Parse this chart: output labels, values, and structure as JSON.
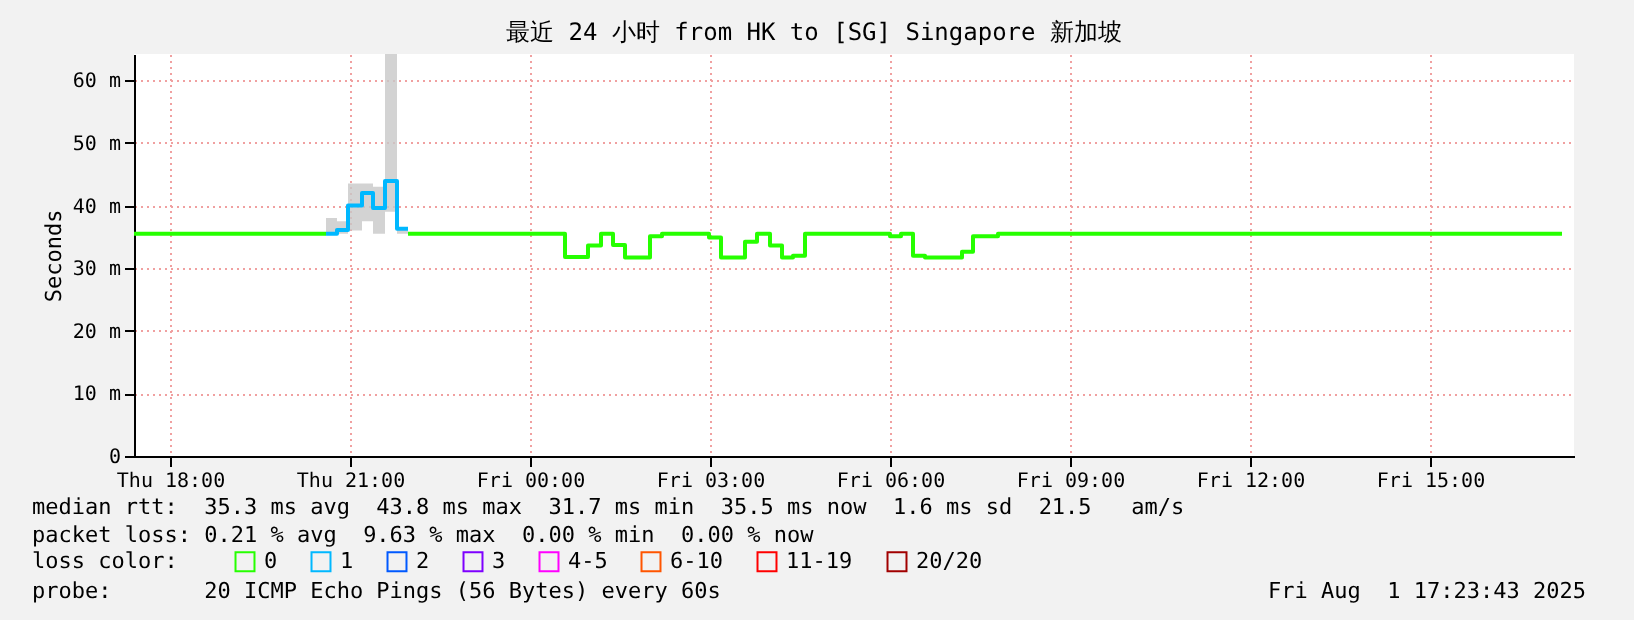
{
  "chart_data": {
    "type": "step",
    "title": "最近 24 小时 from HK to [SG] Singapore 新加坡",
    "ylabel": "Seconds",
    "xlim": [
      "2025-07-31T17:24",
      "2025-08-01T17:24"
    ],
    "xticks": [
      {
        "value": "2025-07-31T18:00",
        "label": "Thu 18:00"
      },
      {
        "value": "2025-07-31T21:00",
        "label": "Thu 21:00"
      },
      {
        "value": "2025-08-01T00:00",
        "label": "Fri 00:00"
      },
      {
        "value": "2025-08-01T03:00",
        "label": "Fri 03:00"
      },
      {
        "value": "2025-08-01T06:00",
        "label": "Fri 06:00"
      },
      {
        "value": "2025-08-01T09:00",
        "label": "Fri 09:00"
      },
      {
        "value": "2025-08-01T12:00",
        "label": "Fri 12:00"
      },
      {
        "value": "2025-08-01T15:00",
        "label": "Fri 15:00"
      }
    ],
    "ylim": [
      0,
      64.2
    ],
    "yticks": [
      {
        "value": 0,
        "label": "0"
      },
      {
        "value": 10,
        "label": "10 m"
      },
      {
        "value": 20,
        "label": "20 m"
      },
      {
        "value": 30,
        "label": "30 m"
      },
      {
        "value": 40,
        "label": "40 m"
      },
      {
        "value": 50,
        "label": "50 m"
      },
      {
        "value": 60,
        "label": "60 m"
      }
    ],
    "grid": true,
    "legend": "bottom",
    "legend_title": "loss color:",
    "line_style": "solid",
    "marker": "none",
    "series": [
      {
        "name": "0",
        "color": "#26ff00",
        "x": [
          "2025-07-31T17:24",
          "2025-07-31T20:36",
          "2025-07-31T20:37",
          "2025-07-31T21:58",
          "2025-08-01T00:35",
          "2025-08-01T00:58",
          "2025-08-01T01:11",
          "2025-08-01T01:23",
          "2025-08-01T01:35",
          "2025-08-01T02:00",
          "2025-08-01T02:12",
          "2025-08-01T02:59",
          "2025-08-01T03:11",
          "2025-08-01T03:35",
          "2025-08-01T03:47",
          "2025-08-01T04:00",
          "2025-08-01T04:12",
          "2025-08-01T04:23",
          "2025-08-01T04:35",
          "2025-08-01T06:00",
          "2025-08-01T06:11",
          "2025-08-01T06:23",
          "2025-08-01T06:35",
          "2025-08-01T07:12",
          "2025-08-01T07:23",
          "2025-08-01T07:48",
          "2025-08-01T17:12"
        ],
        "values": [
          35.5,
          35.5,
          null,
          35.5,
          31.8,
          33.6,
          35.5,
          33.7,
          31.7,
          35.1,
          35.5,
          34.9,
          31.7,
          34.2,
          35.5,
          33.6,
          31.7,
          32.0,
          35.5,
          35.1,
          35.5,
          32.0,
          31.7,
          32.6,
          35.1,
          35.5,
          35.5
        ]
      },
      {
        "name": "1",
        "color": "#00b8ff",
        "x": [
          "2025-07-31T20:36",
          "2025-07-31T20:47",
          "2025-07-31T20:58",
          "2025-07-31T21:12",
          "2025-07-31T21:23",
          "2025-07-31T21:35",
          "2025-07-31T21:47",
          "2025-07-31T21:58"
        ],
        "values": [
          35.5,
          36.1,
          40.0,
          42.0,
          39.6,
          43.9,
          36.3,
          36.3
        ],
        "lower": [
          35.5,
          35.5,
          36.0,
          37.5,
          35.5,
          39.0,
          35.5,
          35.5
        ],
        "upper": [
          38.0,
          37.5,
          43.5,
          43.5,
          43.0,
          64.2,
          36.5,
          36.5
        ]
      },
      {
        "name": "2",
        "color": "#0059ff"
      },
      {
        "name": "3",
        "color": "#7e00ff"
      },
      {
        "name": "4-5",
        "color": "#ff00ff"
      },
      {
        "name": "6-10",
        "color": "#ff5500"
      },
      {
        "name": "11-19",
        "color": "#ff0000"
      },
      {
        "name": "20/20",
        "color": "#a10000"
      }
    ],
    "annotations": [
      "median rtt:  35.3 ms avg  43.8 ms max  31.7 ms min  35.5 ms now  1.6 ms sd  21.5   am/s",
      "packet loss: 0.21 % avg  9.63 % max  0.00 % min  0.00 % now",
      "probe:       20 ICMP Echo Pings (56 Bytes) every 60s",
      "Fri Aug  1 17:23:43 2025"
    ]
  }
}
